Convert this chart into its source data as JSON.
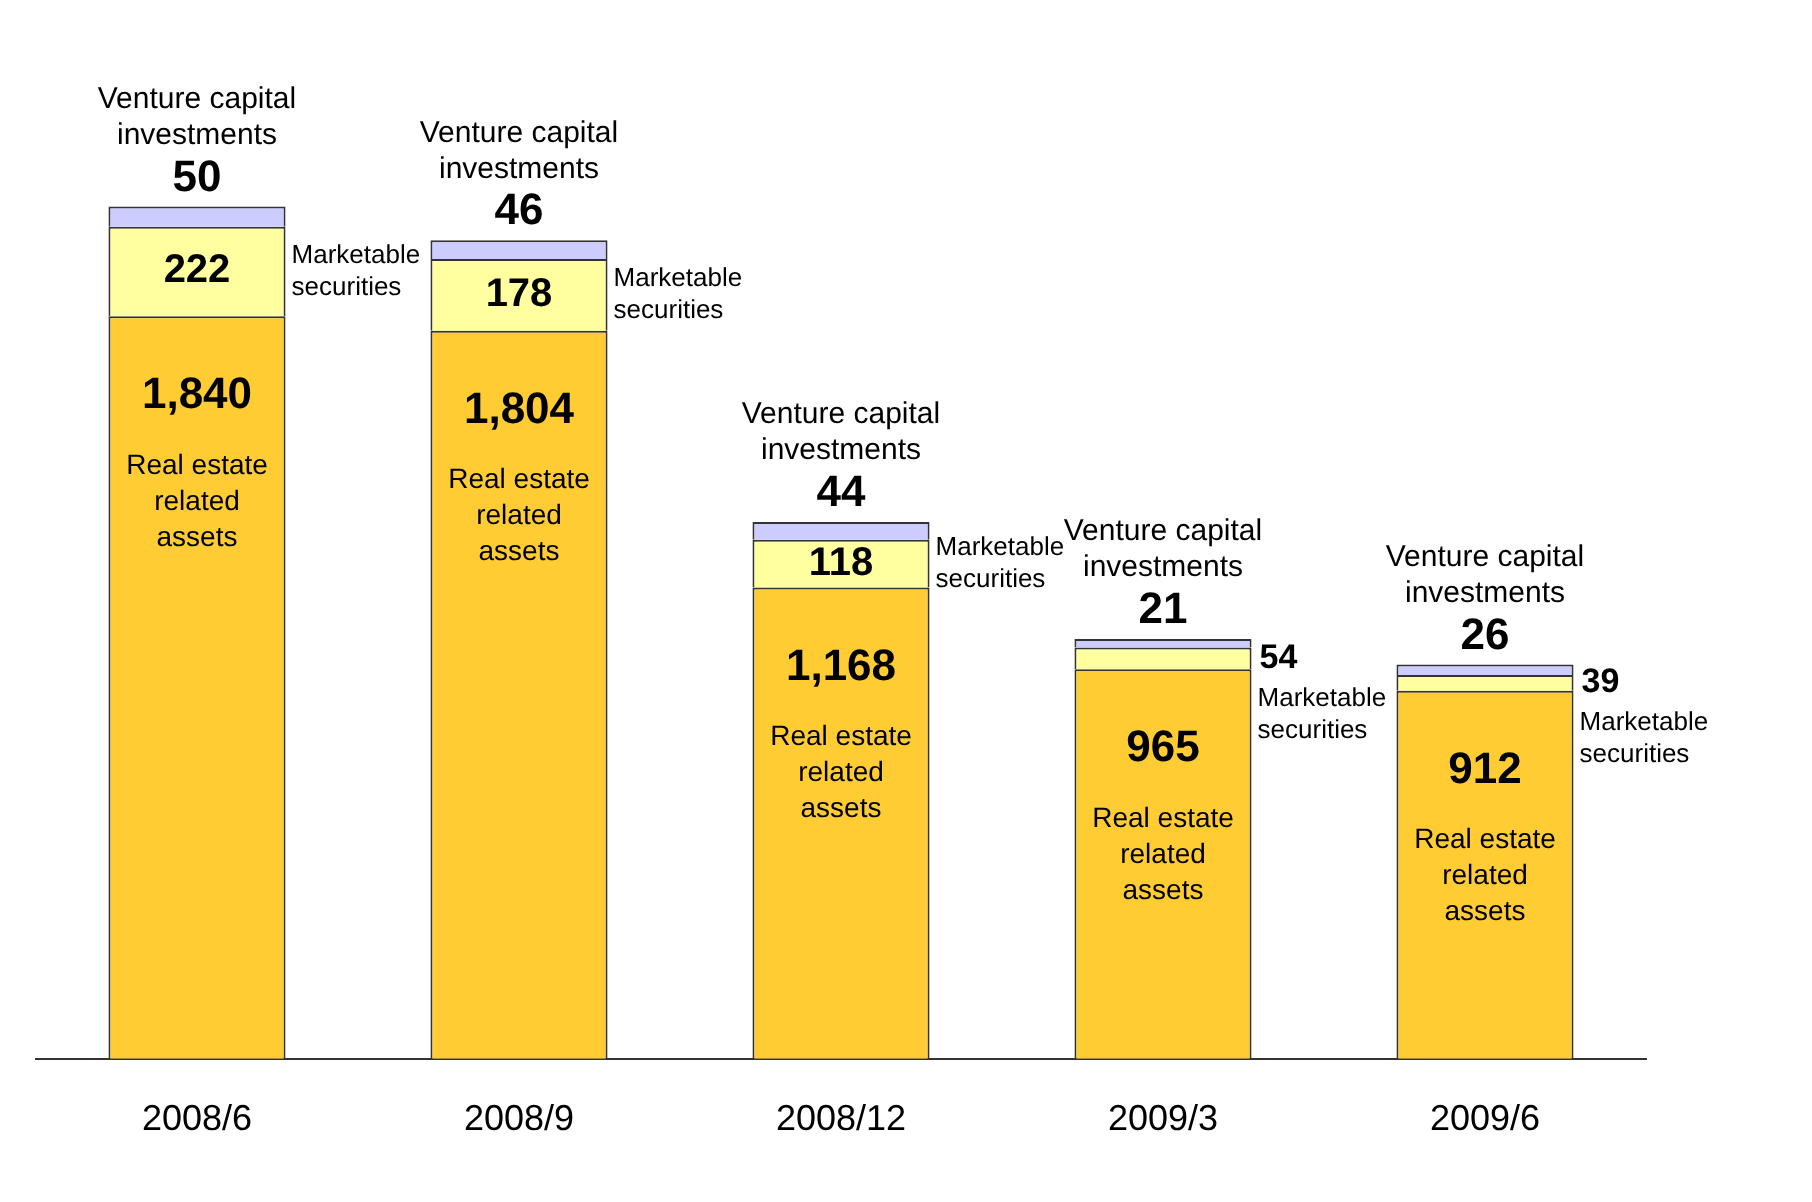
{
  "chart_data": {
    "type": "bar",
    "stacked": true,
    "categories": [
      "2008/6",
      "2008/9",
      "2008/12",
      "2009/3",
      "2009/6"
    ],
    "series": [
      {
        "name": "Real estate related assets",
        "color": "#ffcc33",
        "values": [
          1840,
          1804,
          1168,
          965,
          912
        ],
        "value_labels": [
          "1,840",
          "1,804",
          "1,168",
          "965",
          "912"
        ]
      },
      {
        "name": "Marketable securities",
        "color": "#ffffa0",
        "values": [
          222,
          178,
          118,
          54,
          39
        ],
        "value_labels": [
          "222",
          "178",
          "118",
          "54",
          "39"
        ]
      },
      {
        "name": "Venture capital investments",
        "color": "#ccccff",
        "values": [
          50,
          46,
          44,
          21,
          26
        ],
        "value_labels": [
          "50",
          "46",
          "44",
          "21",
          "26"
        ]
      }
    ],
    "legend": false,
    "grid": false
  }
}
